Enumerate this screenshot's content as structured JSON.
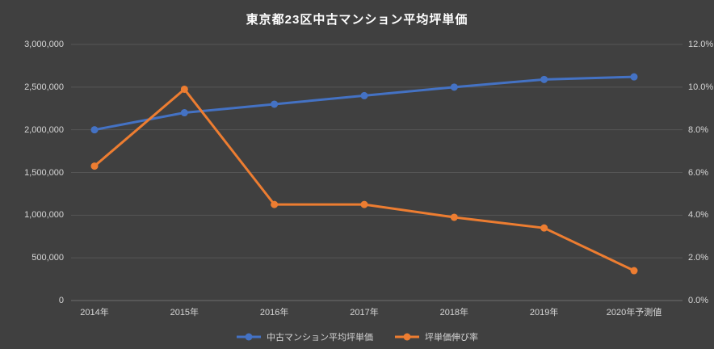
{
  "chart_data": {
    "type": "line",
    "title": "東京都23区中古マンション平均坪単価",
    "categories": [
      "2014年",
      "2015年",
      "2016年",
      "2017年",
      "2018年",
      "2019年",
      "2020年予測値"
    ],
    "series": [
      {
        "name": "中古マンション平均坪単価",
        "axis": "left",
        "color": "#4472C4",
        "values": [
          2000000,
          2200000,
          2300000,
          2400000,
          2500000,
          2590000,
          2620000
        ]
      },
      {
        "name": "坪単価伸び率",
        "axis": "right",
        "color": "#ED7D31",
        "values": [
          6.3,
          9.9,
          4.5,
          4.5,
          3.9,
          3.4,
          1.4
        ]
      }
    ],
    "left_axis": {
      "min": 0,
      "max": 3000000,
      "step": 500000,
      "tick_labels": [
        "0",
        "500,000",
        "1,000,000",
        "1,500,000",
        "2,000,000",
        "2,500,000",
        "3,000,000"
      ]
    },
    "right_axis": {
      "min": 0,
      "max": 12,
      "step": 2,
      "tick_labels": [
        "0.0%",
        "2.0%",
        "4.0%",
        "6.0%",
        "8.0%",
        "10.0%",
        "12.0%"
      ]
    },
    "grid": true,
    "legend_position": "bottom"
  },
  "colors": {
    "background": "#404040",
    "title": "#FFFFFF",
    "text": "#D6D6D6",
    "gridline": "#565656",
    "axis_line": "#6E6E6E"
  }
}
